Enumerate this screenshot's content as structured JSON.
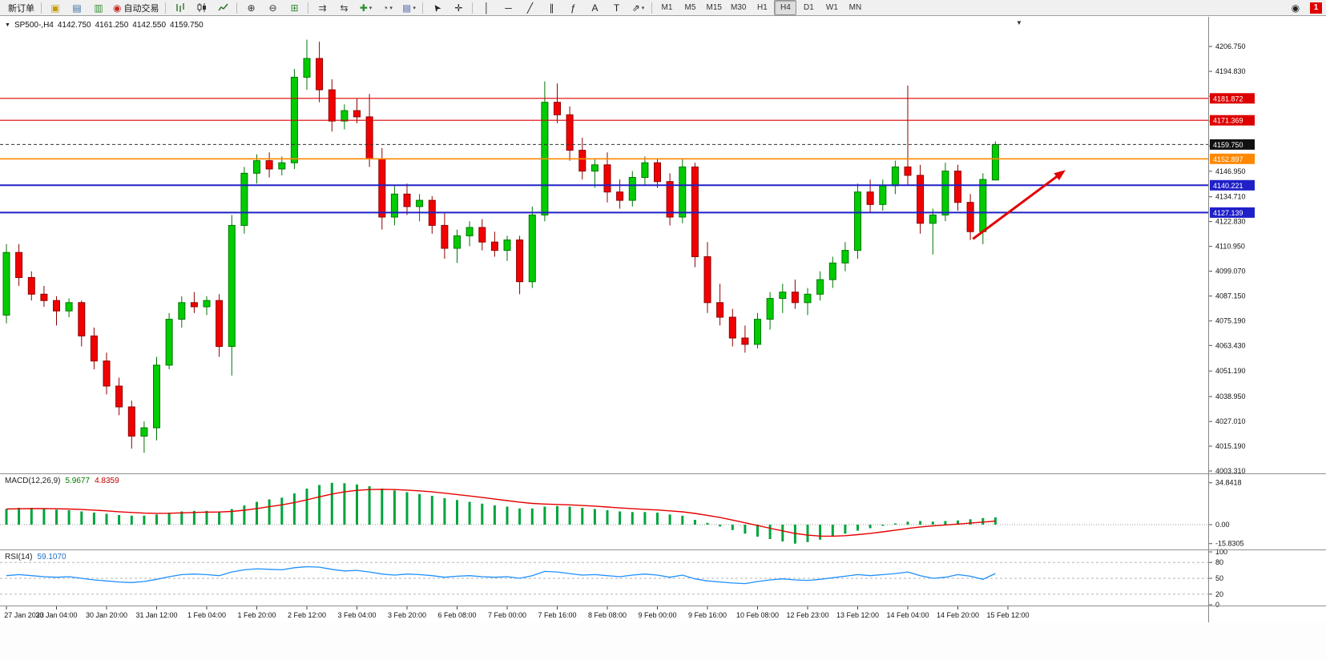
{
  "window": {
    "app": "MetaTrader terminal"
  },
  "toolbar": {
    "new_order_label": "新订单",
    "autotrading_label": "自动交易",
    "timeframes": [
      "M1",
      "M5",
      "M15",
      "M30",
      "H1",
      "H4",
      "D1",
      "W1",
      "MN"
    ],
    "active_timeframe": "H4",
    "notification_count": "1",
    "items": [
      {
        "t": "btn",
        "name": "new-order-button",
        "label": "新订单"
      },
      {
        "t": "sep"
      },
      {
        "t": "icon",
        "name": "new-chart-icon",
        "glyph": "▣",
        "color": "#c89b00"
      },
      {
        "t": "icon",
        "name": "profiles-icon",
        "glyph": "▤",
        "color": "#3a6ea5"
      },
      {
        "t": "icon",
        "name": "data-window-icon",
        "glyph": "▥",
        "color": "#3a8f3a"
      },
      {
        "t": "icon",
        "name": "autotrading-button",
        "glyph": "◉",
        "color": "#c22a1e",
        "label": "自动交易"
      },
      {
        "t": "sep"
      },
      {
        "t": "svg",
        "name": "bar-chart-icon",
        "svg": "bars"
      },
      {
        "t": "svg",
        "name": "candlestick-chart-icon",
        "svg": "candles"
      },
      {
        "t": "svg",
        "name": "line-chart-icon",
        "svg": "linec"
      },
      {
        "t": "sep"
      },
      {
        "t": "icon",
        "name": "zoom-in-icon",
        "glyph": "⊕",
        "color": "#333333"
      },
      {
        "t": "icon",
        "name": "zoom-out-icon",
        "glyph": "⊖",
        "color": "#333333"
      },
      {
        "t": "icon",
        "name": "tile-windows-icon",
        "glyph": "⊞",
        "color": "#3a8f3a"
      },
      {
        "t": "sep"
      },
      {
        "t": "icon",
        "name": "auto-scroll-icon",
        "glyph": "⇉",
        "color": "#444444"
      },
      {
        "t": "icon",
        "name": "chart-shift-icon",
        "glyph": "⇆",
        "color": "#444444"
      },
      {
        "t": "icon",
        "name": "indicators-button",
        "glyph": "✚",
        "color": "#2c8f2c",
        "drop": true
      },
      {
        "t": "icon",
        "name": "periods-button",
        "glyph": "◔",
        "color": "#555555",
        "drop": true
      },
      {
        "t": "icon",
        "name": "templates-button",
        "glyph": "▩",
        "color": "#7788bb",
        "drop": true
      },
      {
        "t": "sep"
      },
      {
        "t": "icon",
        "name": "cursor-icon",
        "glyph": "➤",
        "color": "#222222",
        "rot": -125
      },
      {
        "t": "icon",
        "name": "crosshair-icon",
        "glyph": "✛",
        "color": "#222222"
      },
      {
        "t": "sep"
      },
      {
        "t": "icon",
        "name": "vertical-line-icon",
        "glyph": "│",
        "color": "#222222"
      },
      {
        "t": "icon",
        "name": "horizontal-line-icon",
        "glyph": "─",
        "color": "#222222"
      },
      {
        "t": "icon",
        "name": "trendline-icon",
        "glyph": "╱",
        "color": "#222222"
      },
      {
        "t": "icon",
        "name": "channel-icon",
        "glyph": "∥",
        "color": "#222222"
      },
      {
        "t": "icon",
        "name": "fibonacci-icon",
        "glyph": "ƒ",
        "color": "#222222"
      },
      {
        "t": "icon",
        "name": "text-icon",
        "glyph": "A",
        "color": "#222222"
      },
      {
        "t": "icon",
        "name": "text-label-icon",
        "glyph": "T",
        "color": "#222222"
      },
      {
        "t": "icon",
        "name": "arrows-button",
        "glyph": "⇗",
        "color": "#222222",
        "drop": true
      },
      {
        "t": "sep"
      },
      {
        "t": "tfs"
      },
      {
        "t": "spacer"
      },
      {
        "t": "alerts",
        "name": "alerts-icon",
        "glyph": "◉"
      },
      {
        "t": "badge",
        "name": "notification-badge"
      }
    ]
  },
  "chart_data": {
    "type": "candlestick",
    "title": "SP500-,H4",
    "ohlc_line": {
      "open": "4142.750",
      "high": "4161.250",
      "low": "4142.550",
      "close": "4159.750"
    },
    "colors": {
      "up": "#00cc00",
      "up_stroke": "#007700",
      "down": "#f20000",
      "down_stroke": "#8e0000"
    },
    "candles": [
      [
        4078,
        4112,
        4074,
        4108
      ],
      [
        4108,
        4112,
        4092,
        4096
      ],
      [
        4096,
        4099,
        4085,
        4088
      ],
      [
        4088,
        4092,
        4082,
        4085
      ],
      [
        4085,
        4087,
        4073,
        4080
      ],
      [
        4080,
        4086,
        4077,
        4084
      ],
      [
        4084,
        4085,
        4063,
        4068
      ],
      [
        4068,
        4072,
        4052,
        4056
      ],
      [
        4056,
        4060,
        4040,
        4044
      ],
      [
        4044,
        4048,
        4030,
        4034
      ],
      [
        4034,
        4037,
        4014,
        4020
      ],
      [
        4020,
        4027,
        4012,
        4024
      ],
      [
        4024,
        4058,
        4018,
        4054
      ],
      [
        4054,
        4079,
        4052,
        4076
      ],
      [
        4076,
        4087,
        4072,
        4084
      ],
      [
        4084,
        4089,
        4079,
        4082
      ],
      [
        4082,
        4087,
        4078,
        4085
      ],
      [
        4085,
        4088,
        4058,
        4063
      ],
      [
        4063,
        4126,
        4049,
        4121
      ],
      [
        4121,
        4149,
        4117,
        4146
      ],
      [
        4146,
        4155,
        4141,
        4152
      ],
      [
        4152,
        4156,
        4144,
        4148
      ],
      [
        4148,
        4154,
        4145,
        4151
      ],
      [
        4151,
        4196,
        4148,
        4192
      ],
      [
        4192,
        4210,
        4186,
        4201
      ],
      [
        4201,
        4209,
        4180,
        4186
      ],
      [
        4186,
        4191,
        4166,
        4171
      ],
      [
        4171,
        4179,
        4167,
        4176
      ],
      [
        4176,
        4182,
        4170,
        4173
      ],
      [
        4173,
        4184,
        4149,
        4153
      ],
      [
        4153,
        4158,
        4119,
        4125
      ],
      [
        4125,
        4140,
        4121,
        4136
      ],
      [
        4136,
        4141,
        4126,
        4130
      ],
      [
        4130,
        4136,
        4123,
        4133
      ],
      [
        4133,
        4135,
        4117,
        4121
      ],
      [
        4121,
        4127,
        4105,
        4110
      ],
      [
        4110,
        4119,
        4103,
        4116
      ],
      [
        4116,
        4123,
        4111,
        4120
      ],
      [
        4120,
        4124,
        4109,
        4113
      ],
      [
        4113,
        4118,
        4106,
        4109
      ],
      [
        4109,
        4116,
        4104,
        4114
      ],
      [
        4114,
        4116,
        4088,
        4094
      ],
      [
        4094,
        4130,
        4091,
        4126
      ],
      [
        4126,
        4190,
        4123,
        4180
      ],
      [
        4180,
        4189,
        4170,
        4174
      ],
      [
        4174,
        4178,
        4152,
        4157
      ],
      [
        4157,
        4163,
        4143,
        4147
      ],
      [
        4147,
        4153,
        4139,
        4150
      ],
      [
        4150,
        4156,
        4132,
        4137
      ],
      [
        4137,
        4143,
        4129,
        4133
      ],
      [
        4133,
        4147,
        4130,
        4144
      ],
      [
        4144,
        4154,
        4140,
        4151
      ],
      [
        4151,
        4153,
        4139,
        4142
      ],
      [
        4142,
        4146,
        4121,
        4125
      ],
      [
        4125,
        4153,
        4122,
        4149
      ],
      [
        4149,
        4151,
        4101,
        4106
      ],
      [
        4106,
        4113,
        4079,
        4084
      ],
      [
        4084,
        4093,
        4073,
        4077
      ],
      [
        4077,
        4081,
        4063,
        4067
      ],
      [
        4067,
        4073,
        4060,
        4064
      ],
      [
        4064,
        4079,
        4062,
        4076
      ],
      [
        4076,
        4089,
        4071,
        4086
      ],
      [
        4086,
        4093,
        4079,
        4089
      ],
      [
        4089,
        4095,
        4081,
        4084
      ],
      [
        4084,
        4091,
        4078,
        4088
      ],
      [
        4088,
        4099,
        4085,
        4095
      ],
      [
        4095,
        4106,
        4091,
        4103
      ],
      [
        4103,
        4113,
        4099,
        4109
      ],
      [
        4109,
        4141,
        4105,
        4137
      ],
      [
        4137,
        4143,
        4127,
        4131
      ],
      [
        4131,
        4143,
        4128,
        4140
      ],
      [
        4140,
        4152,
        4136,
        4149
      ],
      [
        4149,
        4188,
        4140,
        4145
      ],
      [
        4145,
        4150,
        4117,
        4122
      ],
      [
        4122,
        4129,
        4107,
        4126
      ],
      [
        4126,
        4151,
        4123,
        4147
      ],
      [
        4147,
        4150,
        4128,
        4132
      ],
      [
        4132,
        4136,
        4114,
        4118
      ],
      [
        4118,
        4146,
        4112,
        4143
      ],
      [
        4142.75,
        4161.25,
        4142.55,
        4159.75
      ]
    ],
    "time_labels": [
      "27 Jan 2023",
      "30 Jan 04:00",
      "30 Jan 20:00",
      "31 Jan 12:00",
      "1 Feb 04:00",
      "1 Feb 20:00",
      "2 Feb 12:00",
      "3 Feb 04:00",
      "3 Feb 20:00",
      "6 Feb 08:00",
      "7 Feb 00:00",
      "7 Feb 16:00",
      "8 Feb 08:00",
      "9 Feb 00:00",
      "9 Feb 16:00",
      "10 Feb 08:00",
      "12 Feb 23:00",
      "13 Feb 12:00",
      "14 Feb 04:00",
      "14 Feb 20:00",
      "15 Feb 12:00"
    ],
    "label_every_bars": 4,
    "price_axis_ticks": [
      4206.75,
      4194.83,
      4182.91,
      4170.99,
      4159.07,
      4146.95,
      4134.71,
      4122.83,
      4110.95,
      4099.07,
      4087.15,
      4075.19,
      4063.43,
      4051.19,
      4038.95,
      4027.01,
      4015.19,
      4003.31
    ],
    "hlines": [
      {
        "price": 4181.872,
        "label": "4181.872",
        "color": "#dd0000",
        "width": 1.2
      },
      {
        "price": 4171.369,
        "label": "4171.369",
        "color": "#dd0000",
        "width": 1.2
      },
      {
        "price": 4159.75,
        "label": "4159.750",
        "color": "#333333",
        "badge": "#111111",
        "width": 1,
        "dash": "4 3"
      },
      {
        "price": 4152.897,
        "label": "4152.897",
        "color": "#ff8800",
        "width": 1.6
      },
      {
        "price": 4140.221,
        "label": "4140.221",
        "color": "#2020c8",
        "width": 2
      },
      {
        "price": 4127.139,
        "label": "4127.139",
        "color": "#2020c8",
        "width": 2
      }
    ],
    "trend_arrow": {
      "from": {
        "bar": 77.2,
        "price": 4114.5
      },
      "to": {
        "bar": 84.6,
        "price": 4147.5
      },
      "color": "#e00000"
    },
    "macd": {
      "type": "histogram+line",
      "label": "MACD(12,26,9)",
      "value": "5.9677",
      "signal_value": "4.8359",
      "scale_labels": [
        "34.8418",
        "0.00",
        "-15.8305"
      ],
      "scale_values": [
        34.8418,
        0,
        -15.8305
      ],
      "hist_color": "#00a43c",
      "signal_color": "#e60000",
      "values": [
        13,
        14,
        14,
        13.5,
        12.5,
        12,
        11,
        10,
        9,
        8,
        7.5,
        7.5,
        8.5,
        10,
        11,
        11.5,
        11.5,
        11,
        13,
        16,
        19,
        21,
        22.5,
        26,
        30,
        33,
        34.8,
        34.5,
        33.5,
        32,
        30,
        28.5,
        27,
        25.5,
        24,
        22,
        20.5,
        19,
        17.5,
        16,
        15,
        13.5,
        13.5,
        15,
        15.5,
        15,
        14,
        13,
        12,
        11,
        10.5,
        10.5,
        10,
        8.5,
        7.5,
        4,
        1.5,
        -1.5,
        -4.5,
        -7.5,
        -10,
        -12,
        -14,
        -15.8,
        -14.5,
        -12.5,
        -10,
        -7.5,
        -5,
        -3,
        -1,
        1,
        2.5,
        3,
        2.5,
        3,
        3.5,
        4.5,
        5.5,
        5.97
      ]
    },
    "rsi": {
      "type": "line",
      "label": "RSI(14)",
      "value": "59.1070",
      "color": "#1e90ff",
      "scale_values": [
        100,
        80,
        50,
        20,
        0
      ],
      "level_lines": [
        80,
        50,
        20
      ],
      "values": [
        55,
        57,
        55,
        53,
        52,
        53,
        50,
        47,
        45,
        43,
        42,
        44,
        48,
        53,
        57,
        58,
        57,
        55,
        62,
        66,
        68,
        67,
        66,
        70,
        72,
        71,
        67,
        64,
        65,
        62,
        58,
        56,
        58,
        57,
        55,
        52,
        54,
        55,
        53,
        52,
        53,
        50,
        55,
        63,
        62,
        59,
        56,
        57,
        55,
        53,
        56,
        58,
        56,
        52,
        56,
        49,
        45,
        43,
        41,
        40,
        44,
        47,
        49,
        47,
        46,
        48,
        51,
        54,
        57,
        55,
        57,
        59,
        62,
        55,
        50,
        52,
        57,
        54,
        48,
        59.1
      ]
    }
  }
}
